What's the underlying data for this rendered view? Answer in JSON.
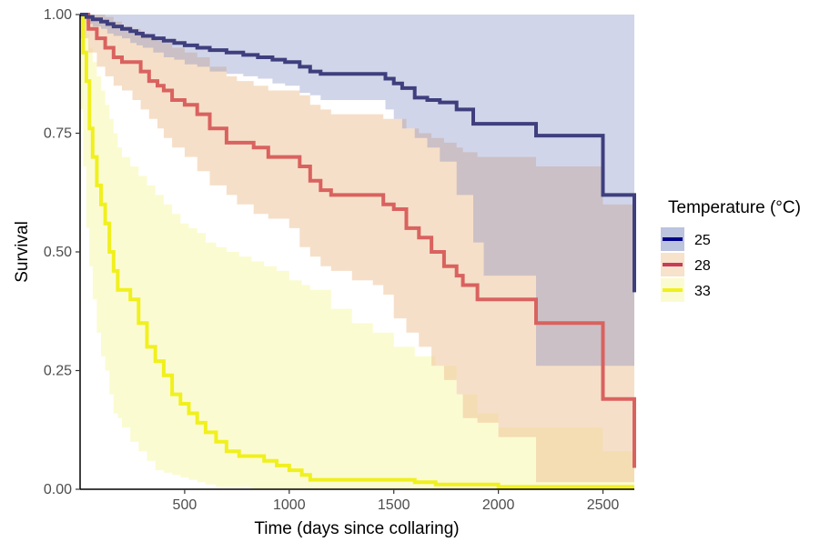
{
  "chart_data": {
    "type": "line",
    "xlabel": "Time (days since collaring)",
    "ylabel": "Survival",
    "xlim": [
      0,
      2650
    ],
    "ylim": [
      0,
      1
    ],
    "x_ticks": [
      500,
      1000,
      1500,
      2000,
      2500
    ],
    "x_tick_labels": [
      "500",
      "1000",
      "1500",
      "2000",
      "2500"
    ],
    "y_ticks": [
      0,
      0.25,
      0.5,
      0.75,
      1
    ],
    "y_tick_labels": [
      "0.00",
      "0.25",
      "0.50",
      "0.75",
      "1.00"
    ],
    "grid": false,
    "legend": {
      "title": "Temperature (°C)",
      "position": "right"
    },
    "series": [
      {
        "name": "25",
        "line_color": "#3f3f7e",
        "swatch_color": "#00008b",
        "ribbon_color": "#7a88c0",
        "x": [
          0,
          30,
          60,
          100,
          130,
          160,
          200,
          240,
          270,
          300,
          350,
          400,
          450,
          500,
          560,
          620,
          700,
          780,
          850,
          920,
          980,
          1050,
          1100,
          1150,
          1460,
          1500,
          1540,
          1600,
          1660,
          1720,
          1800,
          1880,
          1930,
          2180,
          2500,
          2650
        ],
        "y": [
          1.0,
          0.995,
          0.99,
          0.985,
          0.98,
          0.975,
          0.97,
          0.965,
          0.96,
          0.955,
          0.95,
          0.945,
          0.94,
          0.935,
          0.93,
          0.925,
          0.92,
          0.915,
          0.91,
          0.905,
          0.9,
          0.89,
          0.88,
          0.875,
          0.865,
          0.855,
          0.845,
          0.825,
          0.82,
          0.815,
          0.8,
          0.77,
          0.77,
          0.745,
          0.62,
          0.415
        ],
        "ci_lower": [
          1.0,
          0.99,
          0.98,
          0.975,
          0.97,
          0.96,
          0.955,
          0.95,
          0.94,
          0.935,
          0.93,
          0.92,
          0.91,
          0.905,
          0.895,
          0.89,
          0.88,
          0.875,
          0.87,
          0.865,
          0.855,
          0.85,
          0.835,
          0.83,
          0.82,
          0.8,
          0.78,
          0.76,
          0.74,
          0.72,
          0.69,
          0.62,
          0.52,
          0.45,
          0.26,
          0.26
        ],
        "ci_upper": [
          1,
          1,
          1,
          1,
          1,
          1,
          1,
          1,
          1,
          1,
          1,
          1,
          1,
          1,
          1,
          1,
          1,
          1,
          1,
          1,
          1,
          1,
          1,
          1,
          1,
          1,
          1,
          1,
          1,
          1,
          1,
          1,
          1,
          1,
          1,
          1
        ]
      },
      {
        "name": "28",
        "line_color": "#d9625f",
        "swatch_color": "#c83c5a",
        "ribbon_color": "#efc59a",
        "x": [
          0,
          40,
          80,
          120,
          160,
          200,
          250,
          290,
          330,
          370,
          400,
          440,
          500,
          560,
          620,
          700,
          750,
          830,
          900,
          1000,
          1050,
          1100,
          1150,
          1200,
          1300,
          1400,
          1450,
          1500,
          1560,
          1620,
          1680,
          1740,
          1800,
          1830,
          1900,
          2000,
          2180,
          2500,
          2650
        ],
        "y": [
          1.0,
          0.97,
          0.95,
          0.93,
          0.91,
          0.9,
          0.9,
          0.88,
          0.86,
          0.85,
          0.84,
          0.82,
          0.81,
          0.79,
          0.76,
          0.73,
          0.73,
          0.72,
          0.7,
          0.7,
          0.68,
          0.65,
          0.63,
          0.62,
          0.62,
          0.62,
          0.6,
          0.59,
          0.55,
          0.53,
          0.5,
          0.47,
          0.45,
          0.43,
          0.4,
          0.4,
          0.35,
          0.19,
          0.045
        ],
        "ci_lower": [
          1.0,
          0.95,
          0.92,
          0.89,
          0.87,
          0.85,
          0.84,
          0.82,
          0.8,
          0.78,
          0.76,
          0.74,
          0.72,
          0.7,
          0.67,
          0.64,
          0.62,
          0.6,
          0.58,
          0.57,
          0.55,
          0.51,
          0.49,
          0.47,
          0.46,
          0.44,
          0.43,
          0.41,
          0.36,
          0.33,
          0.3,
          0.26,
          0.23,
          0.2,
          0.15,
          0.14,
          0.11,
          0.015,
          0.015
        ],
        "ci_upper": [
          1,
          1,
          1,
          0.995,
          0.985,
          0.975,
          0.97,
          0.96,
          0.95,
          0.945,
          0.94,
          0.93,
          0.92,
          0.91,
          0.89,
          0.87,
          0.86,
          0.85,
          0.84,
          0.84,
          0.83,
          0.81,
          0.8,
          0.79,
          0.79,
          0.79,
          0.78,
          0.78,
          0.76,
          0.75,
          0.74,
          0.73,
          0.72,
          0.71,
          0.7,
          0.7,
          0.68,
          0.6,
          0.45
        ]
      },
      {
        "name": "33",
        "line_color": "#f0f01e",
        "swatch_color": "#f0f01e",
        "ribbon_color": "#fbfbcc",
        "x": [
          0,
          15,
          30,
          45,
          60,
          80,
          100,
          120,
          140,
          160,
          180,
          200,
          240,
          280,
          320,
          360,
          400,
          440,
          480,
          520,
          560,
          600,
          650,
          700,
          760,
          820,
          880,
          940,
          1000,
          1060,
          1100,
          1200,
          1300,
          1400,
          1500,
          1600,
          1700,
          1800,
          1900,
          2000,
          2500,
          2650
        ],
        "y": [
          1.0,
          0.92,
          0.86,
          0.76,
          0.7,
          0.64,
          0.6,
          0.56,
          0.5,
          0.46,
          0.42,
          0.42,
          0.4,
          0.35,
          0.3,
          0.27,
          0.24,
          0.2,
          0.18,
          0.16,
          0.14,
          0.12,
          0.1,
          0.08,
          0.07,
          0.07,
          0.06,
          0.05,
          0.04,
          0.03,
          0.02,
          0.02,
          0.02,
          0.02,
          0.02,
          0.015,
          0.01,
          0.01,
          0.01,
          0.005,
          0.005,
          0.005
        ],
        "ci_lower": [
          1.0,
          0.8,
          0.68,
          0.55,
          0.47,
          0.4,
          0.33,
          0.28,
          0.25,
          0.2,
          0.16,
          0.15,
          0.13,
          0.1,
          0.08,
          0.06,
          0.04,
          0.035,
          0.03,
          0.025,
          0.02,
          0.015,
          0.01,
          0.005,
          0.005,
          0.005,
          0,
          0,
          0,
          0,
          0,
          0,
          0,
          0,
          0,
          0,
          0,
          0,
          0,
          0,
          0,
          0
        ],
        "ci_upper": [
          1.0,
          0.99,
          0.96,
          0.93,
          0.9,
          0.87,
          0.84,
          0.81,
          0.78,
          0.75,
          0.72,
          0.7,
          0.68,
          0.66,
          0.64,
          0.62,
          0.6,
          0.58,
          0.56,
          0.55,
          0.54,
          0.52,
          0.51,
          0.5,
          0.49,
          0.48,
          0.47,
          0.46,
          0.44,
          0.43,
          0.42,
          0.38,
          0.35,
          0.33,
          0.3,
          0.28,
          0.26,
          0.2,
          0.16,
          0.13,
          0.08,
          0.08
        ]
      }
    ]
  }
}
